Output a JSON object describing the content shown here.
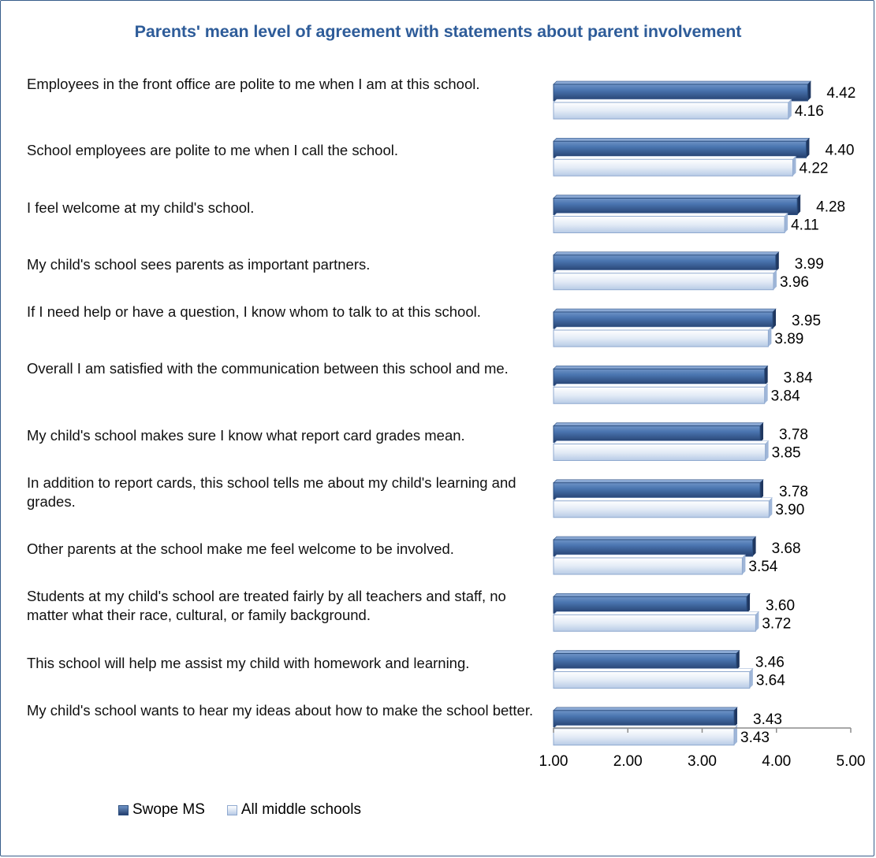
{
  "chart_data": {
    "type": "bar",
    "orientation": "horizontal",
    "title": "Parents' mean level of agreement with statements about parent involvement",
    "categories": [
      "Employees in the front office are polite to me when I am at this school.",
      "School employees are polite to me when I call the school.",
      "I feel welcome at my child's school.",
      "My child's school sees parents as important partners.",
      "If I need help or have a question, I know whom to talk to at this school.",
      "Overall I am satisfied with the communication between this school and me.",
      "My child's school makes sure I know what report card grades mean.",
      "In addition to report cards, this school tells me about my child's learning and grades.",
      "Other parents at the school make me feel welcome to be involved.",
      "Students at my child's school are treated fairly by all teachers and staff, no matter what their race, cultural, or family background.",
      "This school will help me assist my child with homework and learning.",
      "My child's school wants to hear my ideas about how to make the school better."
    ],
    "series": [
      {
        "name": "Swope MS",
        "color": "#3c6aa8",
        "values": [
          4.42,
          4.4,
          4.28,
          3.99,
          3.95,
          3.84,
          3.78,
          3.78,
          3.68,
          3.6,
          3.46,
          3.43
        ],
        "labels": [
          "4.42",
          "4.40",
          "4.28",
          "3.99",
          "3.95",
          "3.84",
          "3.78",
          "3.78",
          "3.68",
          "3.60",
          "3.46",
          "3.43"
        ]
      },
      {
        "name": "All middle schools",
        "color": "#dbe6f4",
        "values": [
          4.16,
          4.22,
          4.11,
          3.96,
          3.89,
          3.84,
          3.85,
          3.9,
          3.54,
          3.72,
          3.64,
          3.43
        ],
        "labels": [
          "4.16",
          "4.22",
          "4.11",
          "3.96",
          "3.89",
          "3.84",
          "3.85",
          "3.90",
          "3.54",
          "3.72",
          "3.64",
          "3.43"
        ]
      }
    ],
    "xlim": [
      1.0,
      5.0
    ],
    "xticks": [
      1.0,
      2.0,
      3.0,
      4.0,
      5.0
    ],
    "xtick_labels": [
      "1.00",
      "2.00",
      "3.00",
      "4.00",
      "5.00"
    ],
    "legend_position": "bottom-left",
    "grid": false
  },
  "colors": {
    "title": "#2e5c99",
    "border": "#385d8a",
    "axis": "#8c8c8c"
  }
}
